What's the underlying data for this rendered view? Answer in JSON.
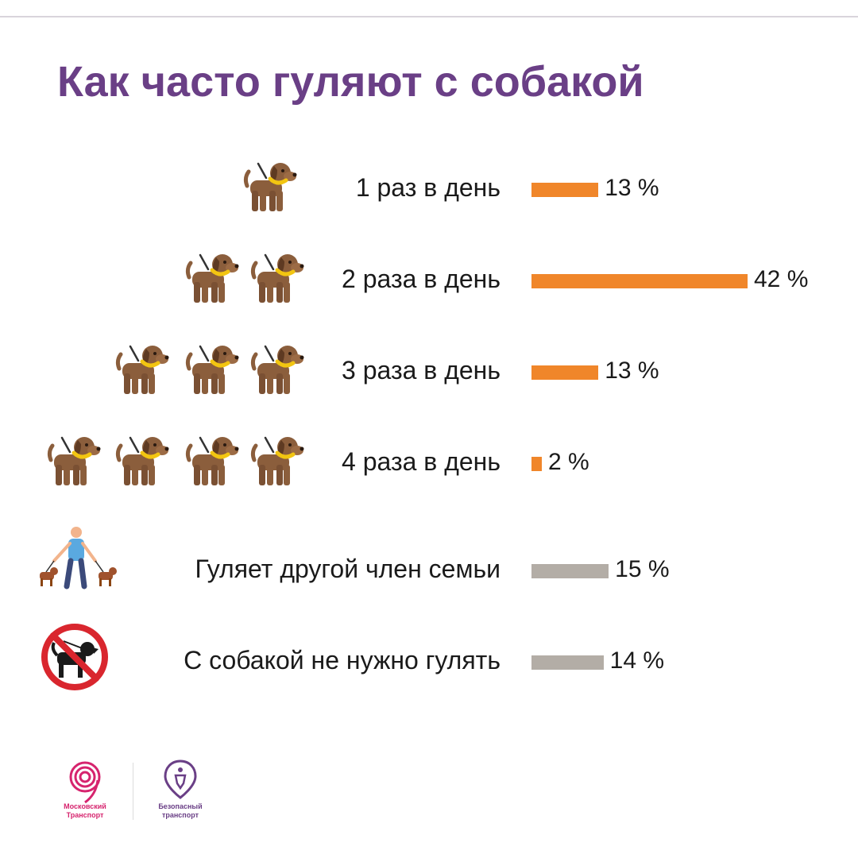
{
  "title": "Как часто гуляют с собакой",
  "chart_data": {
    "type": "bar",
    "title": "Как часто гуляют с собакой",
    "orientation": "horizontal",
    "categories": [
      "1 раз в день",
      "2 раза в день",
      "3 раза в день",
      "4 раза в день",
      "Гуляет другой член семьи",
      "С собакой не нужно гулять"
    ],
    "values": [
      13,
      42,
      13,
      2,
      15,
      14
    ],
    "value_labels": [
      "13 %",
      "42 %",
      "13 %",
      "2 %",
      "15 %",
      "14 %"
    ],
    "unit": "%",
    "colors": [
      "#f0862a",
      "#f0862a",
      "#f0862a",
      "#f0862a",
      "#b3ada6",
      "#b3ada6"
    ],
    "xlim": [
      0,
      42
    ]
  },
  "footer": {
    "logo1_line1": "Московский",
    "logo1_line2": "Транспорт",
    "logo2_line1": "Безопасный",
    "logo2_line2": "транспорт"
  },
  "colors": {
    "title": "#6a3f86",
    "accent_bar": "#f0862a",
    "secondary_bar": "#b3ada6",
    "dog_body": "#8b5e3c",
    "collar": "#f2c511",
    "logo1": "#d6246e",
    "logo2": "#6a3f86"
  }
}
